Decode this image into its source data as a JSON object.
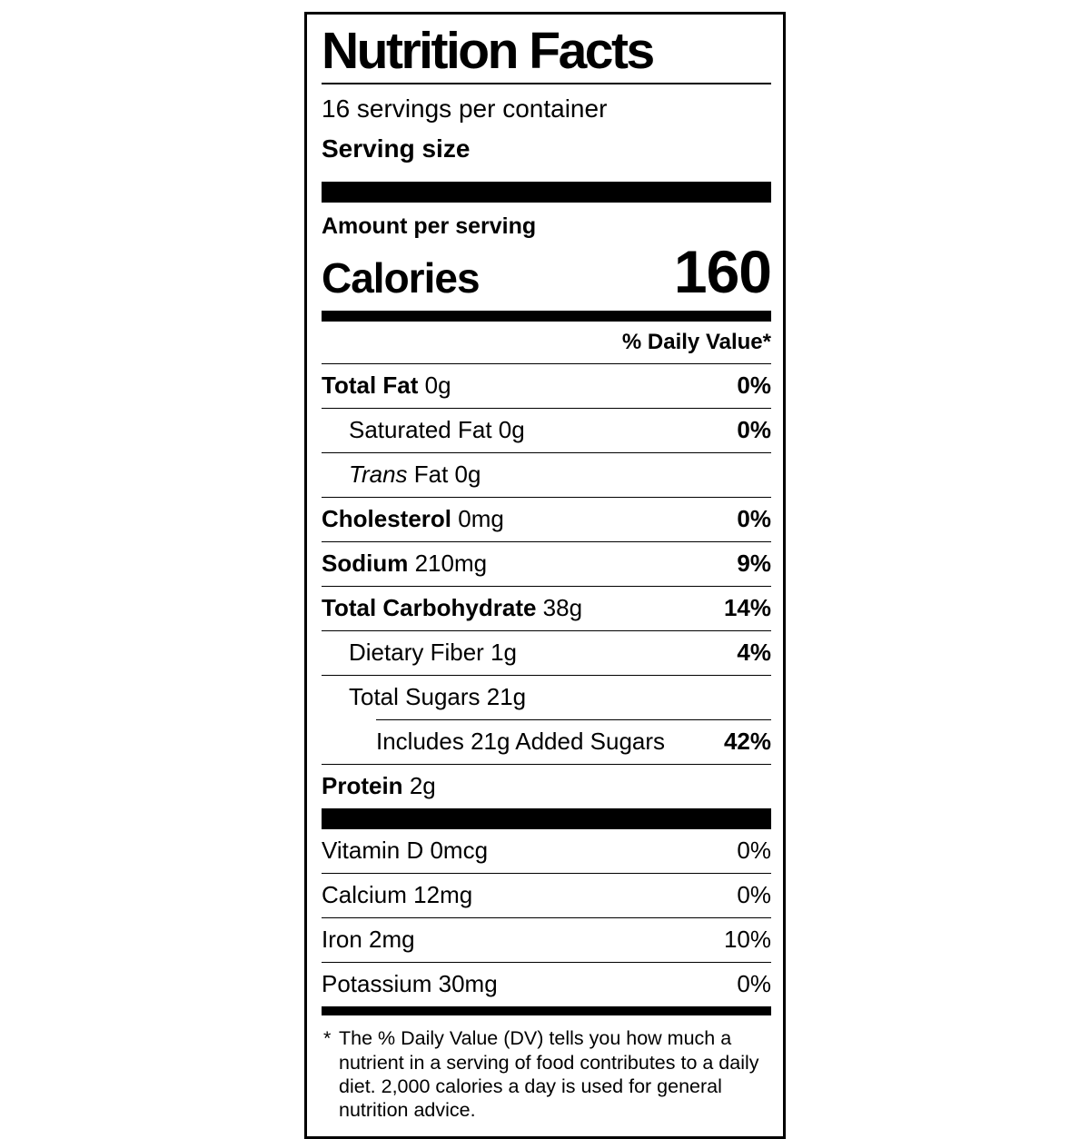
{
  "colors": {
    "ink": "#000000",
    "background": "#ffffff"
  },
  "label": {
    "title": "Nutrition Facts",
    "servings_per_container": "16 servings per container",
    "serving_size_label": "Serving size",
    "amount_per_serving": "Amount per serving",
    "calories_label": "Calories",
    "calories_value": "160",
    "daily_value_header": "% Daily Value*",
    "nutrients": [
      {
        "name": "Total Fat",
        "value": "0g",
        "pct": "0%",
        "style": "bold",
        "indent": 0
      },
      {
        "name": "Saturated Fat",
        "value": "0g",
        "pct": "0%",
        "style": "normal",
        "indent": 1
      },
      {
        "name": "Trans",
        "value": "Fat 0g",
        "pct": "",
        "style": "italic",
        "indent": 1
      },
      {
        "name": "Cholesterol",
        "value": "0mg",
        "pct": "0%",
        "style": "bold",
        "indent": 0
      },
      {
        "name": "Sodium",
        "value": "210mg",
        "pct": "9%",
        "style": "bold",
        "indent": 0
      },
      {
        "name": "Total Carbohydrate",
        "value": "38g",
        "pct": "14%",
        "style": "bold",
        "indent": 0
      },
      {
        "name": "Dietary Fiber",
        "value": "1g",
        "pct": "4%",
        "style": "normal",
        "indent": 1
      },
      {
        "name": "Total Sugars",
        "value": "21g",
        "pct": "",
        "style": "normal",
        "indent": 1
      },
      {
        "name": "Includes 21g Added Sugars",
        "value": "",
        "pct": "42%",
        "style": "normal",
        "indent": 2
      },
      {
        "name": "Protein",
        "value": "2g",
        "pct": "",
        "style": "bold",
        "indent": 0
      }
    ],
    "vitamins": [
      {
        "name": "Vitamin D",
        "value": "0mcg",
        "pct": "0%"
      },
      {
        "name": "Calcium",
        "value": "12mg",
        "pct": "0%"
      },
      {
        "name": "Iron",
        "value": "2mg",
        "pct": "10%"
      },
      {
        "name": "Potassium",
        "value": "30mg",
        "pct": "0%"
      }
    ],
    "footnote_marker": "*",
    "footnote_text": "The % Daily Value (DV) tells you how much a nutrient in a serving of food contributes to a daily diet. 2,000 calories a day is used for general nutrition advice."
  }
}
